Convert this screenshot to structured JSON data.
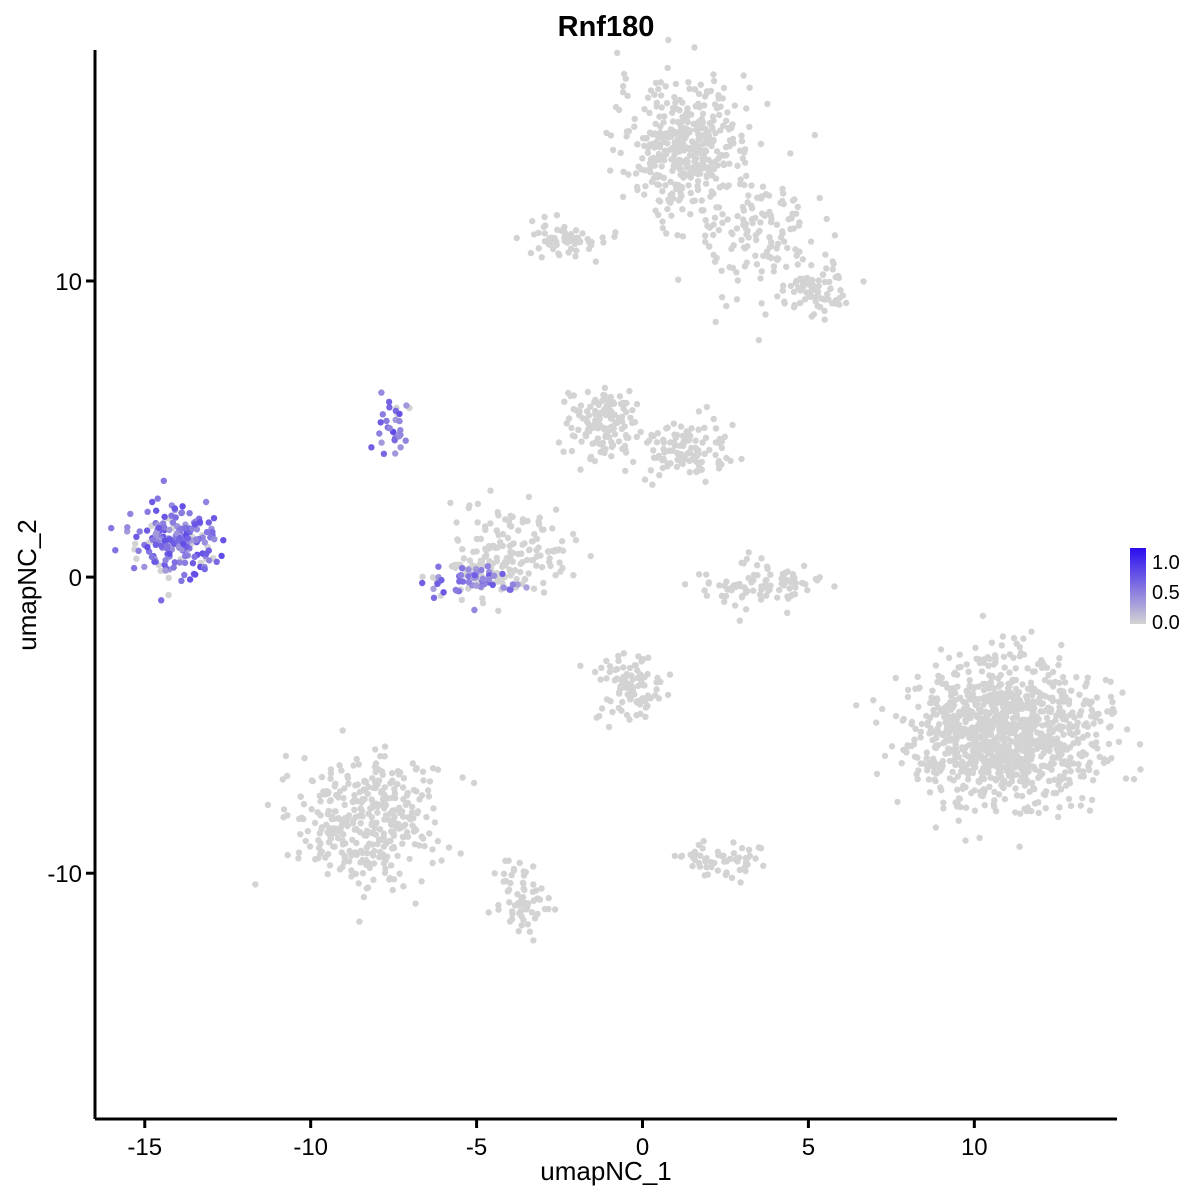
{
  "chart_data": {
    "type": "scatter",
    "title": "Rnf180",
    "xlabel": "umapNC_1",
    "ylabel": "umapNC_2",
    "xlim": [
      -16.5,
      14.3
    ],
    "ylim": [
      -18.3,
      17.8
    ],
    "x_ticks": [
      -15,
      -10,
      -5,
      0,
      5,
      10
    ],
    "x_tick_labels": [
      "-15",
      "-10",
      "-5",
      "0",
      "5",
      "10"
    ],
    "y_ticks": [
      10,
      0,
      -10
    ],
    "y_tick_labels": [
      "10",
      "0",
      "-10"
    ],
    "grid": false,
    "colors": {
      "low": "#d3d3d3",
      "high": "#2a0df0",
      "axis": "#000000"
    },
    "legend": {
      "placement": "right",
      "min": 0.0,
      "max": 1.2,
      "ticks": [
        1.0,
        0.5,
        0.0
      ],
      "tick_labels": [
        "1.0",
        "0.5",
        "0.0"
      ]
    },
    "clusters": [
      {
        "center": [
          1.3,
          14.5
        ],
        "spread": [
          1.0,
          1.1
        ],
        "n": 420,
        "expr": 0
      },
      {
        "center": [
          3.5,
          11.5
        ],
        "spread": [
          1.0,
          1.1
        ],
        "n": 140,
        "expr": 0
      },
      {
        "center": [
          5.3,
          9.6
        ],
        "spread": [
          0.5,
          0.4
        ],
        "n": 70,
        "expr": 0
      },
      {
        "center": [
          -2.4,
          11.5
        ],
        "spread": [
          0.6,
          0.3
        ],
        "n": 60,
        "expr": 0
      },
      {
        "center": [
          -1.3,
          5.2
        ],
        "spread": [
          0.5,
          0.6
        ],
        "n": 130,
        "expr": 0
      },
      {
        "center": [
          1.3,
          4.3
        ],
        "spread": [
          0.8,
          0.5
        ],
        "n": 110,
        "expr": 0
      },
      {
        "center": [
          -4.0,
          0.8
        ],
        "spread": [
          0.9,
          0.7
        ],
        "n": 170,
        "expr": 0
      },
      {
        "center": [
          3.5,
          -0.3
        ],
        "spread": [
          0.9,
          0.4
        ],
        "n": 90,
        "expr": 0
      },
      {
        "center": [
          10.9,
          -5.3
        ],
        "spread": [
          1.4,
          1.2
        ],
        "n": 1100,
        "expr": 0
      },
      {
        "center": [
          -0.4,
          -3.7
        ],
        "spread": [
          0.5,
          0.6
        ],
        "n": 100,
        "expr": 0
      },
      {
        "center": [
          -8.4,
          -8.3
        ],
        "spread": [
          1.1,
          1.1
        ],
        "n": 360,
        "expr": 0
      },
      {
        "center": [
          -3.6,
          -11.0
        ],
        "spread": [
          0.4,
          0.6
        ],
        "n": 70,
        "expr": 0
      },
      {
        "center": [
          2.4,
          -9.5
        ],
        "spread": [
          0.5,
          0.3
        ],
        "n": 60,
        "expr": 0
      },
      {
        "center": [
          -14.0,
          1.2
        ],
        "spread": [
          0.6,
          0.6
        ],
        "n": 200,
        "expr": 0.55
      },
      {
        "center": [
          -5.0,
          -0.2
        ],
        "spread": [
          0.7,
          0.3
        ],
        "n": 60,
        "expr": 0.5
      },
      {
        "center": [
          -7.5,
          5.3
        ],
        "spread": [
          0.3,
          0.5
        ],
        "n": 30,
        "expr": 0.55
      }
    ]
  }
}
